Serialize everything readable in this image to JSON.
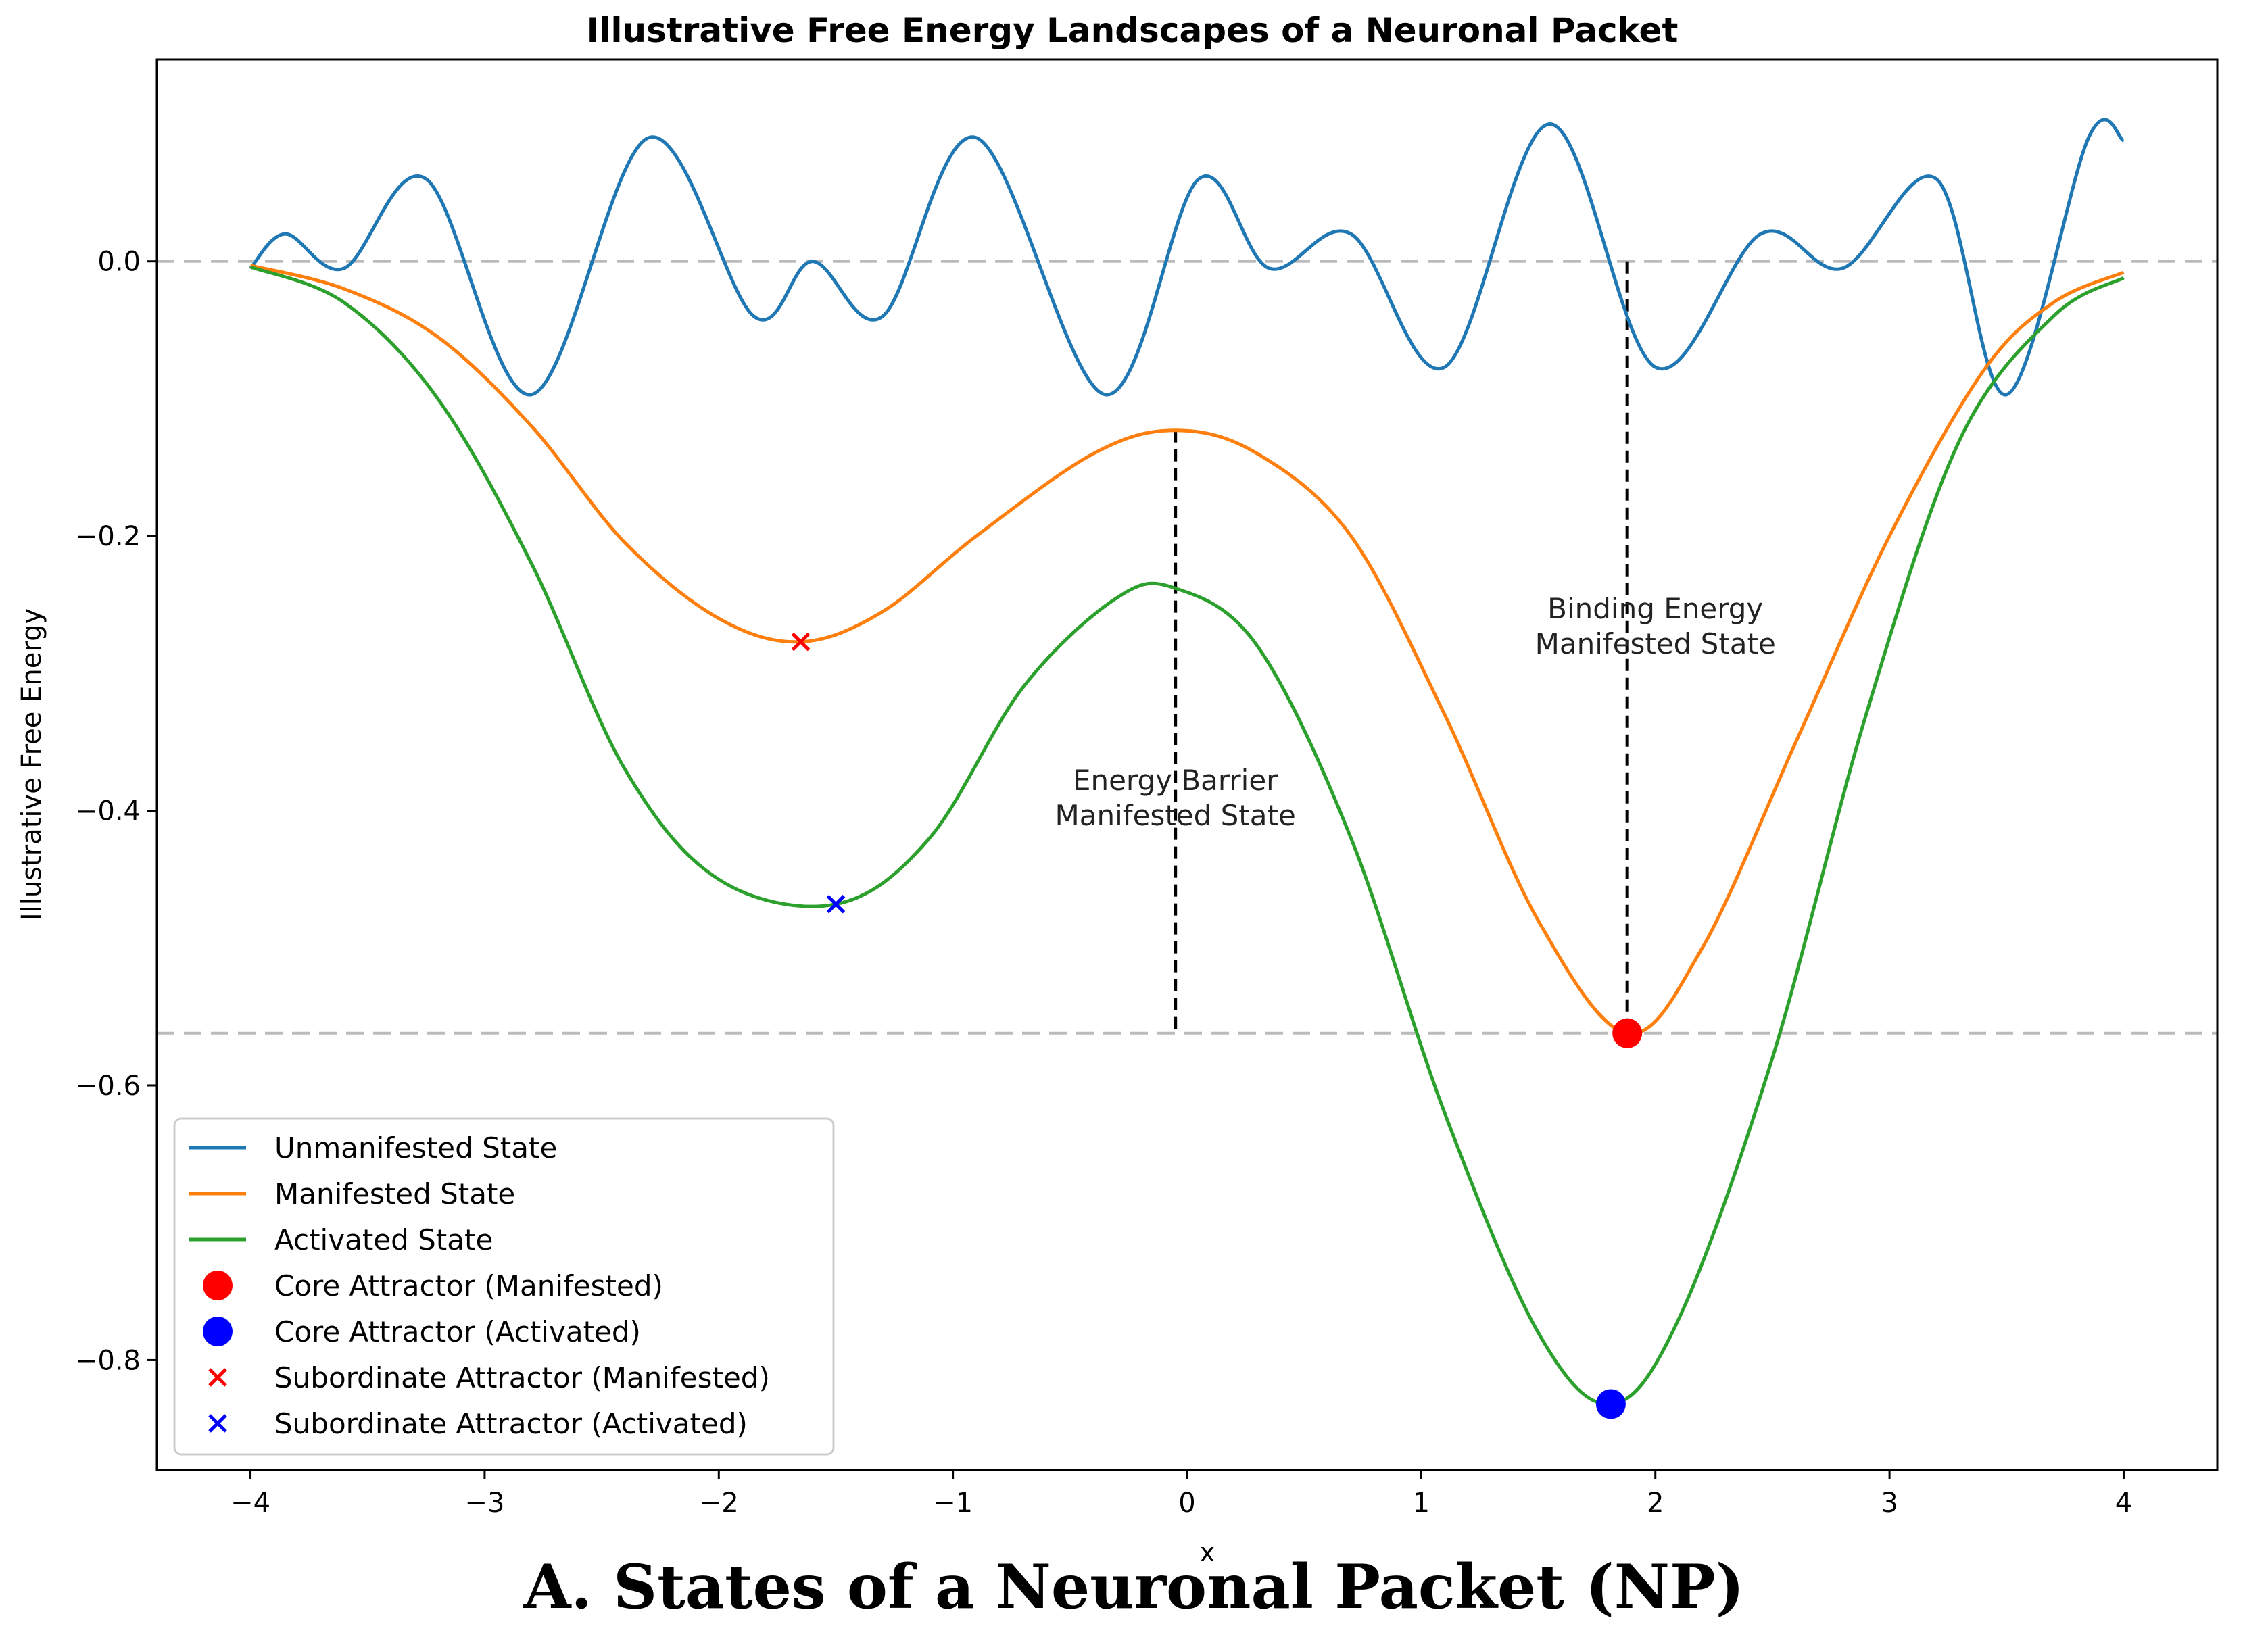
{
  "chart_data": {
    "type": "line",
    "title": "Illustrative Free Energy Landscapes of a Neuronal Packet",
    "xlabel": "x",
    "ylabel": "Illustrative Free Energy",
    "xlim": [
      -4.4,
      4.4
    ],
    "ylim": [
      -0.88,
      0.147
    ],
    "xticks": [
      -4,
      -3,
      -2,
      -1,
      0,
      1,
      2,
      3,
      4
    ],
    "xtick_labels": [
      "−4",
      "−3",
      "−2",
      "−1",
      "0",
      "1",
      "2",
      "3",
      "4"
    ],
    "yticks": [
      0.0,
      -0.2,
      -0.4,
      -0.6,
      -0.8
    ],
    "ytick_labels": [
      "0.0",
      "−0.2",
      "−0.4",
      "−0.6",
      "−0.8"
    ],
    "grid": false,
    "legend_position": "lower-left",
    "colors": {
      "unmanifested": "#1f77b4",
      "manifested": "#ff7f0e",
      "activated": "#2ca02c",
      "core_manifested": "#ff0000",
      "core_activated": "#0000ff",
      "reference_lines": "#bbbbbb",
      "annotation_lines": "#000000"
    },
    "series": [
      {
        "name": "Unmanifested State",
        "key": "unmanifested",
        "x": [
          -4,
          -3.85,
          -3.6,
          -3.25,
          -2.8,
          -2.3,
          -1.85,
          -1.6,
          -1.3,
          -0.9,
          -0.35,
          0.05,
          0.35,
          0.7,
          1.1,
          1.55,
          2.0,
          2.45,
          2.8,
          3.2,
          3.5,
          3.85,
          4
        ],
        "y": [
          -0.005,
          0.02,
          -0.005,
          0.06,
          -0.097,
          0.09,
          -0.04,
          0.0,
          -0.04,
          0.09,
          -0.097,
          0.06,
          -0.005,
          0.02,
          -0.077,
          0.1,
          -0.077,
          0.02,
          -0.005,
          0.06,
          -0.097,
          0.09,
          0.088
        ]
      },
      {
        "name": "Manifested State",
        "key": "manifested",
        "x": [
          -4,
          -3.6,
          -3.2,
          -2.8,
          -2.4,
          -2.0,
          -1.65,
          -1.3,
          -0.9,
          -0.4,
          -0.05,
          0.3,
          0.7,
          1.1,
          1.5,
          1.88,
          2.2,
          2.6,
          3.0,
          3.4,
          3.7,
          4
        ],
        "y": [
          -0.003,
          -0.02,
          -0.055,
          -0.12,
          -0.205,
          -0.26,
          -0.277,
          -0.255,
          -0.2,
          -0.14,
          -0.123,
          -0.14,
          -0.2,
          -0.33,
          -0.48,
          -0.562,
          -0.5,
          -0.35,
          -0.2,
          -0.08,
          -0.03,
          -0.008
        ]
      },
      {
        "name": "Activated State",
        "key": "activated",
        "x": [
          -4,
          -3.6,
          -3.2,
          -2.8,
          -2.4,
          -2.0,
          -1.5,
          -1.1,
          -0.7,
          -0.3,
          -0.05,
          0.3,
          0.7,
          1.1,
          1.5,
          1.81,
          2.1,
          2.5,
          2.9,
          3.3,
          3.7,
          4
        ],
        "y": [
          -0.004,
          -0.03,
          -0.1,
          -0.22,
          -0.37,
          -0.45,
          -0.468,
          -0.42,
          -0.31,
          -0.245,
          -0.238,
          -0.28,
          -0.42,
          -0.62,
          -0.78,
          -0.832,
          -0.77,
          -0.58,
          -0.33,
          -0.13,
          -0.04,
          -0.012
        ]
      }
    ],
    "reference_lines": [
      {
        "y": 0.0,
        "style": "dashed"
      },
      {
        "y": -0.562,
        "style": "dashed"
      }
    ],
    "markers": [
      {
        "name": "Core Attractor (Manifested)",
        "marker": "circle",
        "color_key": "core_manifested",
        "x": 1.88,
        "y": -0.562
      },
      {
        "name": "Core Attractor (Activated)",
        "marker": "circle",
        "color_key": "core_activated",
        "x": 1.81,
        "y": -0.832
      },
      {
        "name": "Subordinate Attractor (Manifested)",
        "marker": "x",
        "color_key": "core_manifested",
        "x": -1.65,
        "y": -0.277
      },
      {
        "name": "Subordinate Attractor (Activated)",
        "marker": "x",
        "color_key": "core_activated",
        "x": -1.5,
        "y": -0.468
      }
    ],
    "annotations": [
      {
        "name": "energy-barrier",
        "lines": [
          "Energy Barrier",
          "Manifested State"
        ],
        "line_x": -0.05,
        "line_y": [
          -0.123,
          -0.562
        ],
        "text_x": -0.05,
        "text_y": -0.385
      },
      {
        "name": "binding-energy",
        "lines": [
          "Binding Energy",
          "Manifested State"
        ],
        "line_x": 1.88,
        "line_y": [
          0.0,
          -0.562
        ],
        "text_x": 2.0,
        "text_y": -0.26
      }
    ],
    "legend": [
      {
        "label": "Unmanifested State",
        "kind": "line",
        "color_key": "unmanifested"
      },
      {
        "label": "Manifested State",
        "kind": "line",
        "color_key": "manifested"
      },
      {
        "label": "Activated State",
        "kind": "line",
        "color_key": "activated"
      },
      {
        "label": "Core Attractor (Manifested)",
        "kind": "circle",
        "color_key": "core_manifested"
      },
      {
        "label": "Core Attractor (Activated)",
        "kind": "circle",
        "color_key": "core_activated"
      },
      {
        "label": "Subordinate Attractor (Manifested)",
        "kind": "x",
        "color_key": "core_manifested"
      },
      {
        "label": "Subordinate Attractor (Activated)",
        "kind": "x",
        "color_key": "core_activated"
      }
    ]
  },
  "caption": "A. States of a Neuronal Packet (NP)"
}
